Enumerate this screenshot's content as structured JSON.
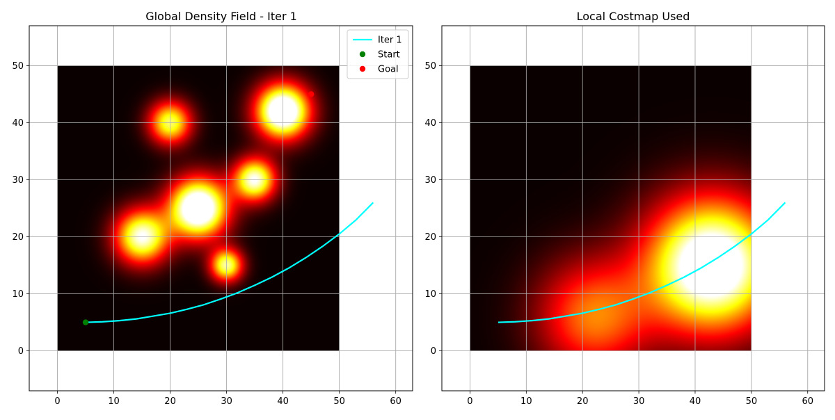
{
  "chart_data": [
    {
      "type": "heatmap",
      "title": "Global Density Field - Iter 1",
      "xlabel": "",
      "ylabel": "",
      "xlim": [
        -5,
        63
      ],
      "ylim": [
        -7,
        57
      ],
      "xticks": [
        0,
        10,
        20,
        30,
        40,
        50,
        60
      ],
      "yticks": [
        0,
        10,
        20,
        30,
        40,
        50
      ],
      "grid": true,
      "colormap": "hot",
      "field_extent": {
        "x": [
          0,
          50
        ],
        "y": [
          0,
          50
        ]
      },
      "density_peaks": [
        {
          "x": 20,
          "y": 40,
          "sigma": 2.6,
          "amp": 0.85
        },
        {
          "x": 40,
          "y": 42,
          "sigma": 3.3,
          "amp": 1.3
        },
        {
          "x": 35,
          "y": 30,
          "sigma": 2.6,
          "amp": 1.0
        },
        {
          "x": 25,
          "y": 25,
          "sigma": 3.6,
          "amp": 1.3
        },
        {
          "x": 15,
          "y": 20,
          "sigma": 3.3,
          "amp": 1.0
        },
        {
          "x": 30,
          "y": 15,
          "sigma": 2.0,
          "amp": 0.9
        }
      ],
      "series": [
        {
          "name": "Iter 1",
          "kind": "line",
          "color": "#00ffff",
          "x": [
            5,
            8,
            11,
            14,
            17,
            20,
            23,
            26,
            29,
            32,
            35,
            38,
            41,
            44,
            47,
            50,
            53,
            56
          ],
          "y": [
            5.0,
            5.1,
            5.3,
            5.6,
            6.1,
            6.6,
            7.3,
            8.1,
            9.1,
            10.2,
            11.5,
            12.9,
            14.5,
            16.3,
            18.3,
            20.5,
            23.0,
            26.0
          ]
        },
        {
          "name": "Start",
          "kind": "scatter",
          "color": "#008000",
          "x": [
            5
          ],
          "y": [
            5
          ]
        },
        {
          "name": "Goal",
          "kind": "scatter",
          "color": "#ff0000",
          "x": [
            45
          ],
          "y": [
            45
          ]
        }
      ],
      "legend": {
        "placement": "top-right",
        "entries": [
          "Iter 1",
          "Start",
          "Goal"
        ]
      }
    },
    {
      "type": "heatmap",
      "title": "Local Costmap Used",
      "xlabel": "",
      "ylabel": "",
      "xlim": [
        -5,
        63
      ],
      "ylim": [
        -7,
        57
      ],
      "xticks": [
        0,
        10,
        20,
        30,
        40,
        50,
        60
      ],
      "yticks": [
        0,
        10,
        20,
        30,
        40,
        50
      ],
      "grid": true,
      "colormap": "hot",
      "field_extent": {
        "x": [
          0,
          50
        ],
        "y": [
          0,
          50
        ]
      },
      "density_peaks": [
        {
          "x": 43,
          "y": 15,
          "sigma": 8.0,
          "amp": 1.25
        },
        {
          "x": 22,
          "y": 6,
          "sigma": 7.0,
          "amp": 0.55
        }
      ],
      "series": [
        {
          "name": "",
          "kind": "line",
          "color": "#00ffff",
          "x": [
            5,
            8,
            11,
            14,
            17,
            20,
            23,
            26,
            29,
            32,
            35,
            38,
            41,
            44,
            47,
            50,
            53,
            56
          ],
          "y": [
            5.0,
            5.1,
            5.3,
            5.6,
            6.1,
            6.6,
            7.3,
            8.1,
            9.1,
            10.2,
            11.5,
            12.9,
            14.5,
            16.3,
            18.3,
            20.5,
            23.0,
            26.0
          ]
        }
      ],
      "legend": null
    }
  ]
}
